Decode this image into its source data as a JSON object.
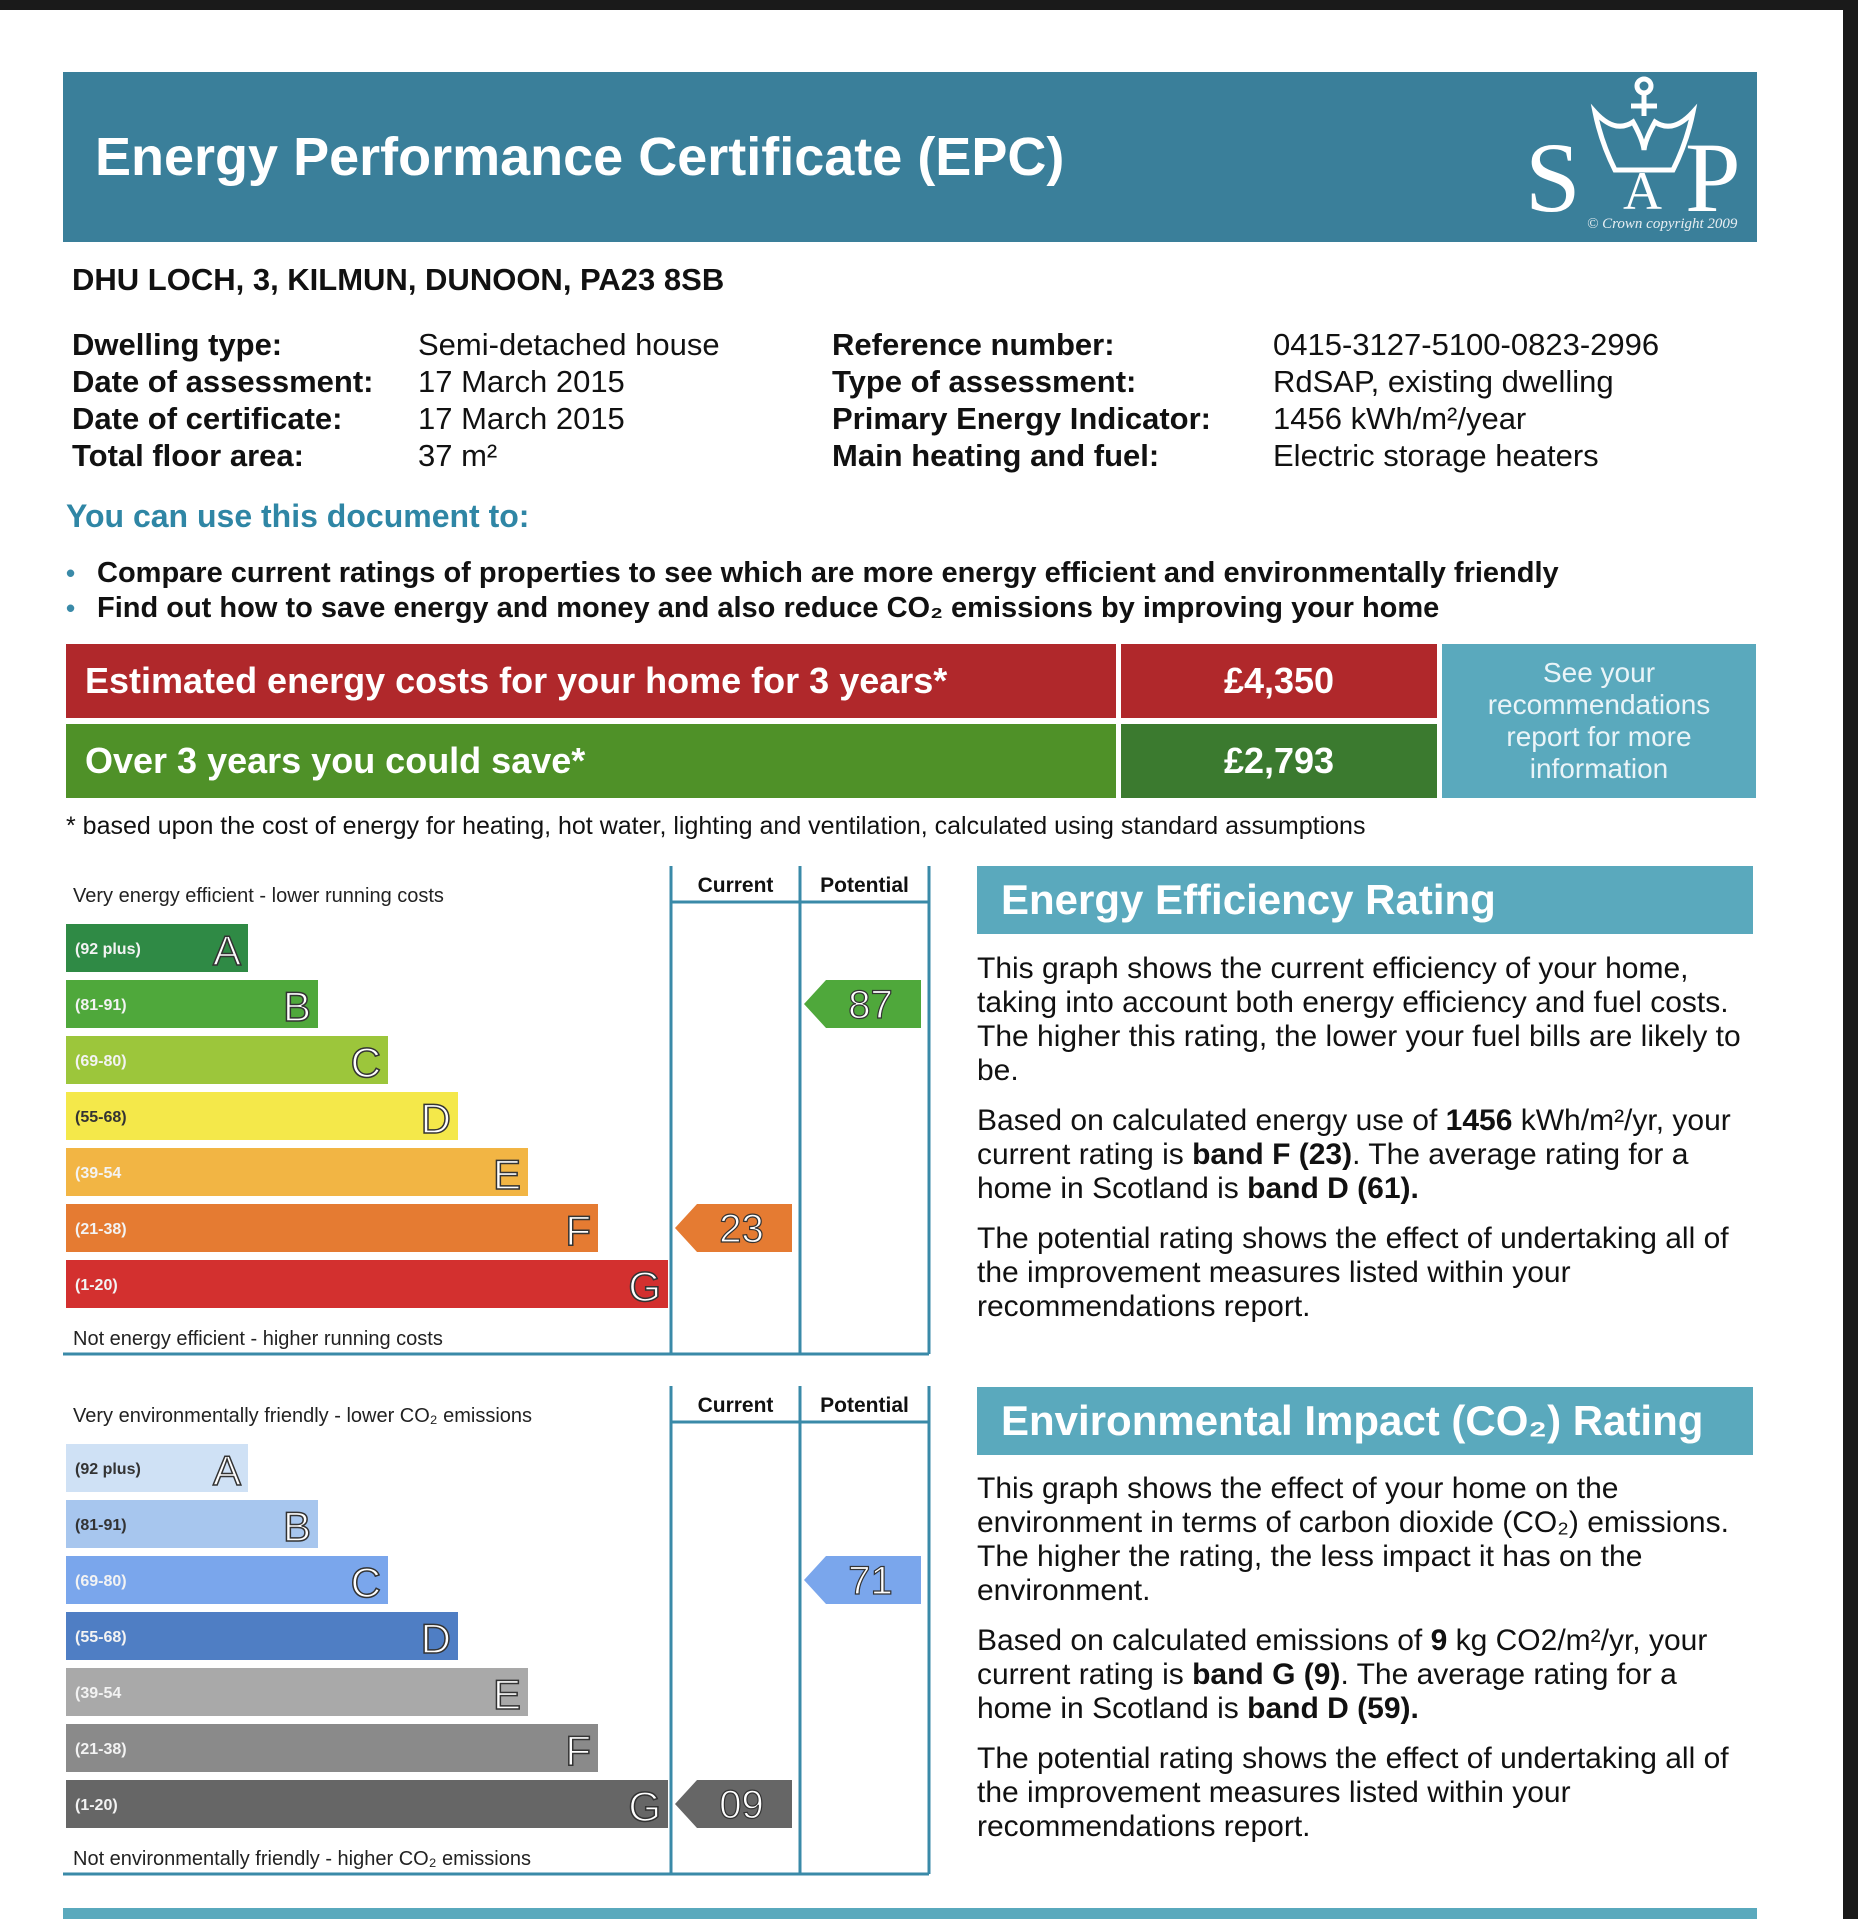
{
  "header": {
    "title": "Energy Performance Certificate (EPC)",
    "logo_letters": [
      "S",
      "A",
      "P"
    ],
    "copyright": "© Crown copyright 2009"
  },
  "address": "DHU LOCH, 3, KILMUN, DUNOON, PA23 8SB",
  "details_left": [
    {
      "label": "Dwelling type:",
      "value": "Semi-detached house"
    },
    {
      "label": "Date of assessment:",
      "value": "17 March 2015"
    },
    {
      "label": "Date of certificate:",
      "value": "17 March 2015"
    },
    {
      "label": "Total floor area:",
      "value": "37 m²"
    }
  ],
  "details_right": [
    {
      "label": "Reference number:",
      "value": "0415-3127-5100-0823-2996"
    },
    {
      "label": "Type of assessment:",
      "value": "RdSAP, existing dwelling"
    },
    {
      "label": "Primary Energy Indicator:",
      "value": "1456 kWh/m²/year"
    },
    {
      "label": "Main heating and fuel:",
      "value": "Electric storage heaters"
    }
  ],
  "use": {
    "title": "You can use this document to:",
    "bullets": [
      "Compare current ratings of properties to see which are more energy efficient and environmentally friendly",
      "Find out how to save energy and money and also reduce CO₂ emissions by improving your home"
    ]
  },
  "costs": {
    "estimated_label": "Estimated energy costs for your home for 3 years*",
    "estimated_value": "£4,350",
    "save_label": "Over 3 years you could save*",
    "save_value": "£2,793",
    "see_text": "See your recommendations report for more information",
    "footnote": "* based upon the cost of energy for heating, hot water, lighting and ventilation, calculated using standard assumptions",
    "colors": {
      "red": "#b0282b",
      "green": "#4f9128",
      "green_dark": "#3b7a2f",
      "teal": "#5aa9bd"
    }
  },
  "energy_chart": {
    "top_label": "Very energy efficient - lower running costs",
    "bottom_label": "Not energy efficient - higher running costs",
    "current_header": "Current",
    "potential_header": "Potential",
    "bands": [
      {
        "letter": "A",
        "range": "(92 plus)",
        "color": "#2f8a45"
      },
      {
        "letter": "B",
        "range": "(81-91)",
        "color": "#4fa83b"
      },
      {
        "letter": "C",
        "range": "(69-80)",
        "color": "#9cc63b"
      },
      {
        "letter": "D",
        "range": "(55-68)",
        "color": "#f4e84a"
      },
      {
        "letter": "E",
        "range": "(39-54",
        "color": "#f2b544"
      },
      {
        "letter": "F",
        "range": "(21-38)",
        "color": "#e57b32"
      },
      {
        "letter": "G",
        "range": "(1-20)",
        "color": "#d3302f"
      }
    ],
    "current": {
      "value": "23",
      "band": "F",
      "color": "#e57b32"
    },
    "potential": {
      "value": "87",
      "band": "B",
      "color": "#4fa83b"
    }
  },
  "env_chart": {
    "top_label": "Very environmentally friendly - lower CO₂ emissions",
    "bottom_label": "Not environmentally friendly - higher CO₂ emissions",
    "current_header": "Current",
    "potential_header": "Potential",
    "bands": [
      {
        "letter": "A",
        "range": "(92 plus)",
        "color": "#cfe1f5"
      },
      {
        "letter": "B",
        "range": "(81-91)",
        "color": "#a7c6ee"
      },
      {
        "letter": "C",
        "range": "(69-80)",
        "color": "#7aa6ec"
      },
      {
        "letter": "D",
        "range": "(55-68)",
        "color": "#4f7ec4"
      },
      {
        "letter": "E",
        "range": "(39-54",
        "color": "#a9a9a9"
      },
      {
        "letter": "F",
        "range": "(21-38)",
        "color": "#8a8a8a"
      },
      {
        "letter": "G",
        "range": "(1-20)",
        "color": "#666666"
      }
    ],
    "current": {
      "value": "09",
      "band": "G",
      "color": "#666666"
    },
    "potential": {
      "value": "71",
      "band": "C",
      "color": "#7aa6ec"
    }
  },
  "eer_panel": {
    "title": "Energy Efficiency Rating",
    "p1": "This graph shows the current efficiency of your home, taking into account both energy efficiency and fuel costs. The higher this rating, the lower your fuel bills are likely to be.",
    "p2_a": "Based on calculated energy use of ",
    "p2_b": "1456",
    "p2_c": " kWh/m²/yr, your current rating is ",
    "p2_d": "band F (23)",
    "p2_e": ". The average rating for a home in Scotland is ",
    "p2_f": "band D (61).",
    "p3": "The potential rating shows the effect of undertaking all of the improvement measures listed within your recommendations report."
  },
  "eir_panel": {
    "title": "Environmental Impact (CO₂) Rating",
    "p1": "This graph shows the effect of your home on the environment in terms of carbon dioxide (CO₂) emissions. The higher the rating, the less impact it has on the environment.",
    "p2_a": "Based on calculated emissions of ",
    "p2_b": "9",
    "p2_c": " kg CO2/m²/yr, your current rating is ",
    "p2_d": "band G (9)",
    "p2_e": ". The average rating for a home in Scotland is ",
    "p2_f": "band D (59).",
    "p3": "The potential rating shows the effect of undertaking all of the improvement measures listed within your recommendations report."
  }
}
